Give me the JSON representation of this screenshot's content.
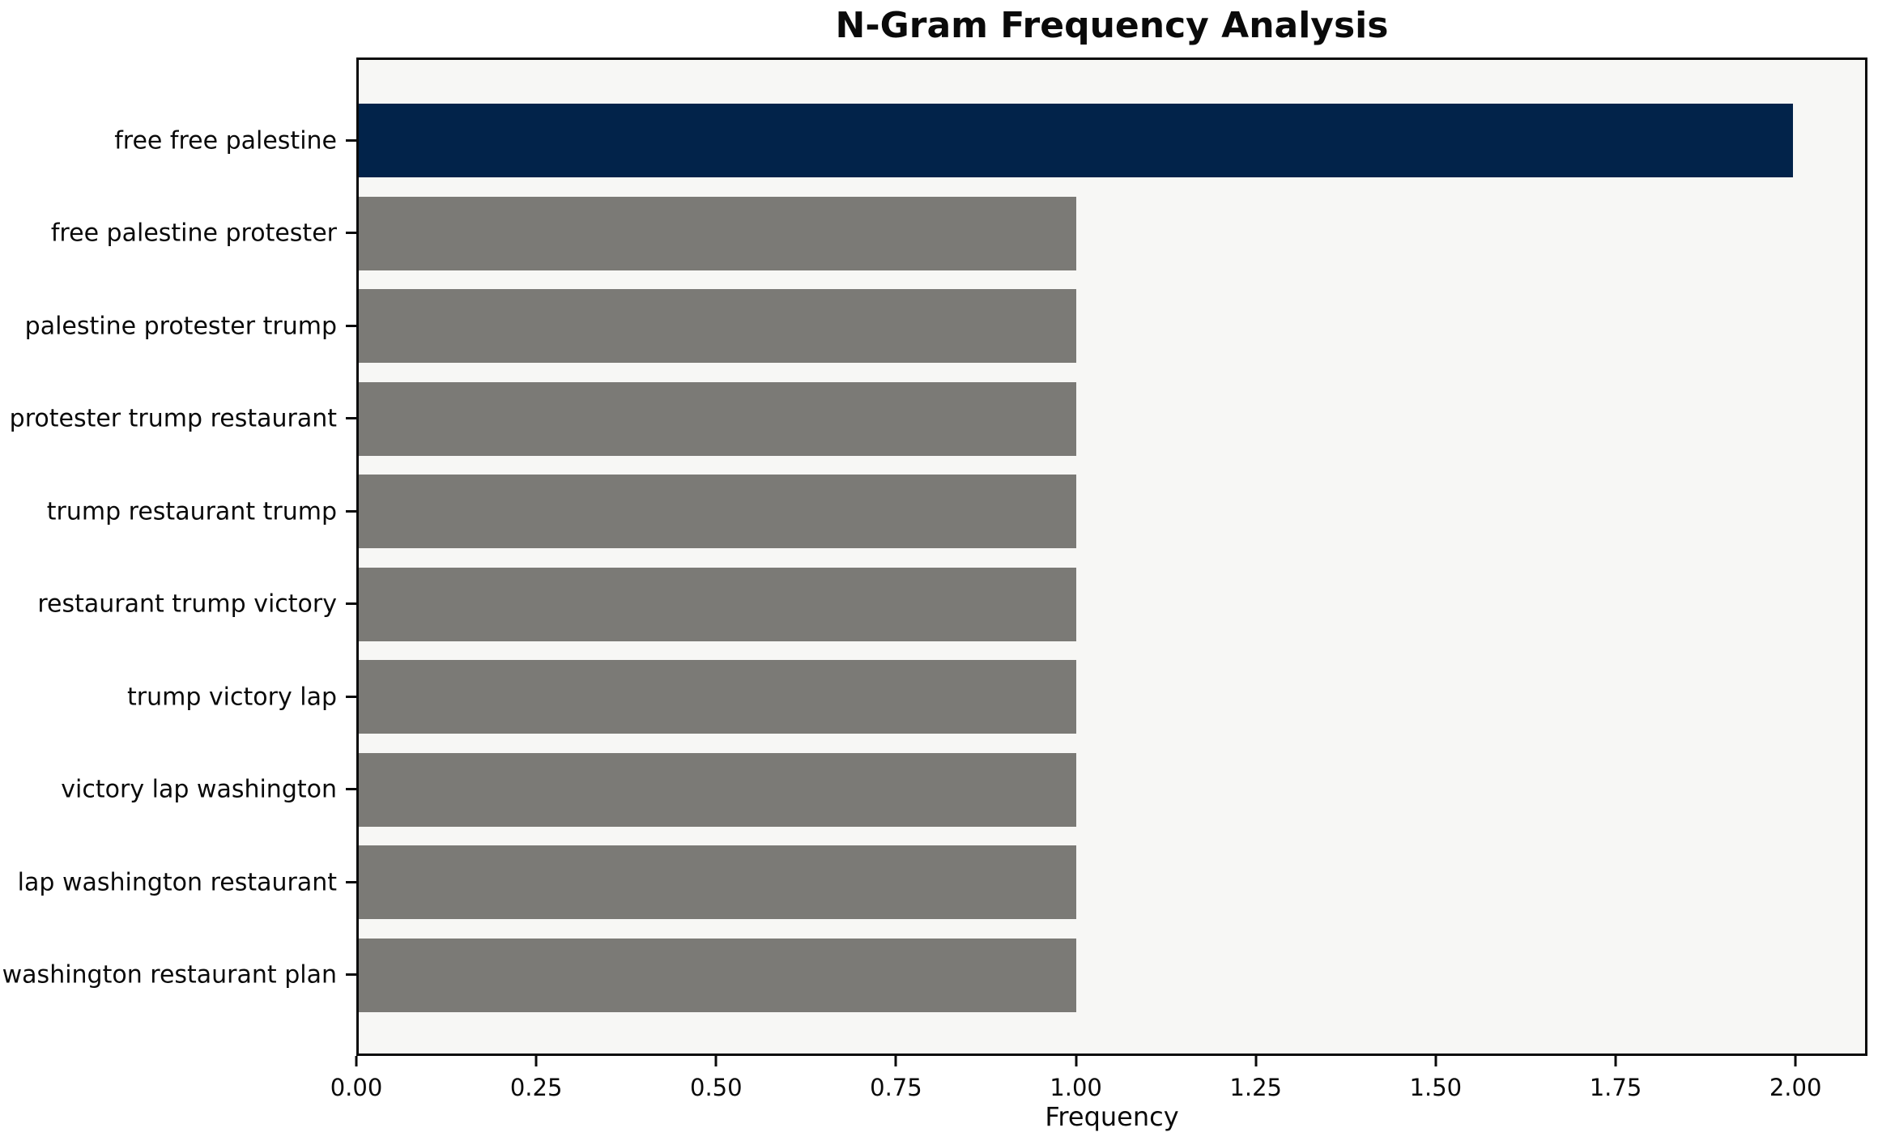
{
  "chart_data": {
    "type": "bar",
    "orientation": "horizontal",
    "title": "N-Gram Frequency Analysis",
    "xlabel": "Frequency",
    "ylabel": "",
    "categories": [
      "free free palestine",
      "free palestine protester",
      "palestine protester trump",
      "protester trump restaurant",
      "trump restaurant trump",
      "restaurant trump victory",
      "trump victory lap",
      "victory lap washington",
      "lap washington restaurant",
      "washington restaurant plan"
    ],
    "values": [
      2,
      1,
      1,
      1,
      1,
      1,
      1,
      1,
      1,
      1
    ],
    "xticks": [
      "0.00",
      "0.25",
      "0.50",
      "0.75",
      "1.00",
      "1.25",
      "1.50",
      "1.75",
      "2.00"
    ],
    "xlim": [
      0,
      2.1
    ],
    "grid": false,
    "legend": false,
    "highlight_index": 0,
    "colors": {
      "highlight_bar": "#02234a",
      "default_bar": "#7b7a76",
      "plot_background": "#f7f7f5",
      "figure_background": "#ffffff",
      "spine": "#0a0a0a",
      "text": "#0a0a0a"
    }
  }
}
